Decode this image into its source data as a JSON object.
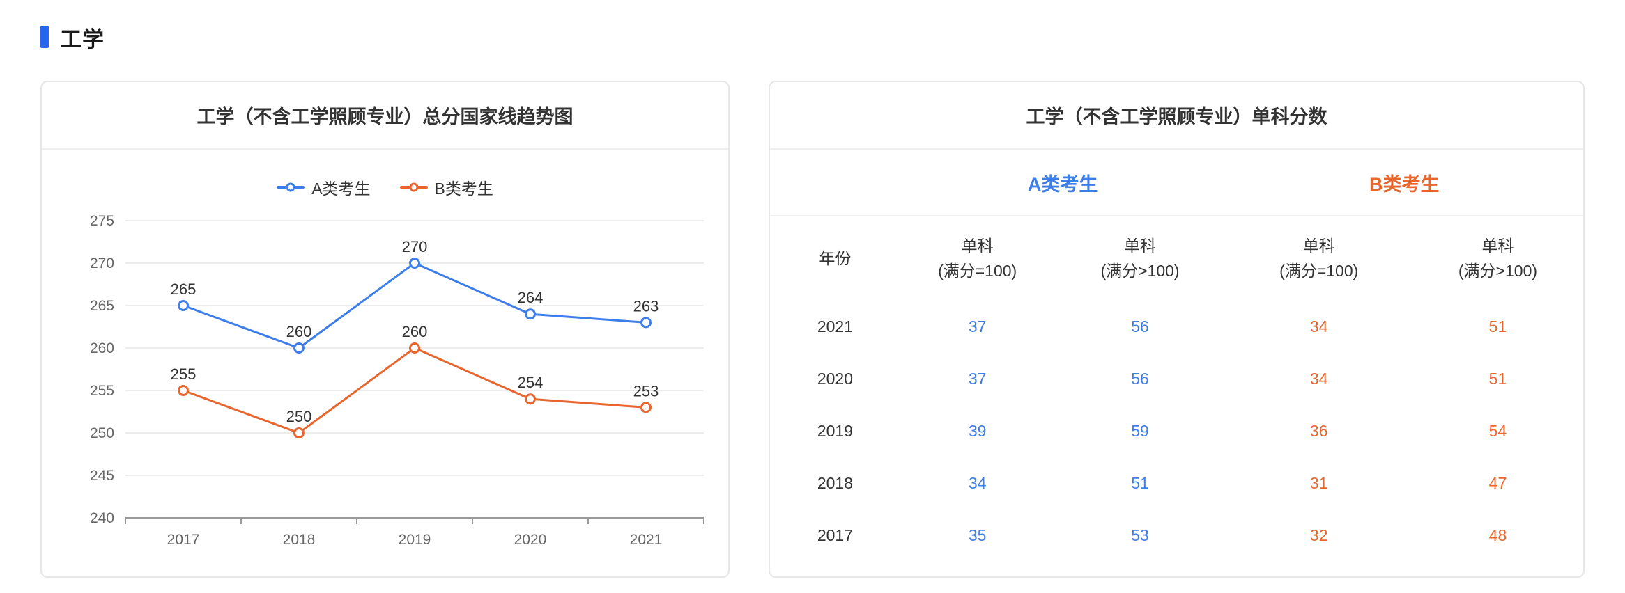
{
  "page": {
    "section_title": "工学",
    "accent_color": "#2468F2"
  },
  "colors": {
    "blue": "#3D7EEB",
    "orange": "#E8662E",
    "grid": "#E6E6E6",
    "axis": "#999999",
    "axis_label": "#666666",
    "label": "#333333"
  },
  "chart_data": [
    {
      "type": "line",
      "title": "工学（不含工学照顾专业）总分国家线趋势图",
      "categories": [
        "2017",
        "2018",
        "2019",
        "2020",
        "2021"
      ],
      "series": [
        {
          "name": "A类考生",
          "color": "#3D7EEB",
          "values": [
            265,
            260,
            270,
            264,
            263
          ]
        },
        {
          "name": "B类考生",
          "color": "#E8662E",
          "values": [
            255,
            250,
            260,
            254,
            253
          ]
        }
      ],
      "ylim": [
        240,
        275
      ],
      "ytick_step": 5,
      "yticks": [
        240,
        245,
        250,
        255,
        260,
        265,
        270,
        275
      ],
      "grid": true,
      "legend_position": "top",
      "xlabel": "",
      "ylabel": ""
    },
    {
      "type": "table",
      "title": "工学（不含工学照顾专业）单科分数",
      "group_headers": [
        {
          "label": "A类考生",
          "color": "#3D7EEB"
        },
        {
          "label": "B类考生",
          "color": "#E8662E"
        }
      ],
      "columns": [
        "年份",
        "单科\n(满分=100)",
        "单科\n(满分>100)",
        "单科\n(满分=100)",
        "单科\n(满分>100)"
      ],
      "rows": [
        {
          "year": "2021",
          "values": [
            "37",
            "56",
            "34",
            "51"
          ]
        },
        {
          "year": "2020",
          "values": [
            "37",
            "56",
            "34",
            "51"
          ]
        },
        {
          "year": "2019",
          "values": [
            "39",
            "59",
            "36",
            "54"
          ]
        },
        {
          "year": "2018",
          "values": [
            "34",
            "51",
            "31",
            "47"
          ]
        },
        {
          "year": "2017",
          "values": [
            "35",
            "53",
            "32",
            "48"
          ]
        }
      ]
    }
  ]
}
